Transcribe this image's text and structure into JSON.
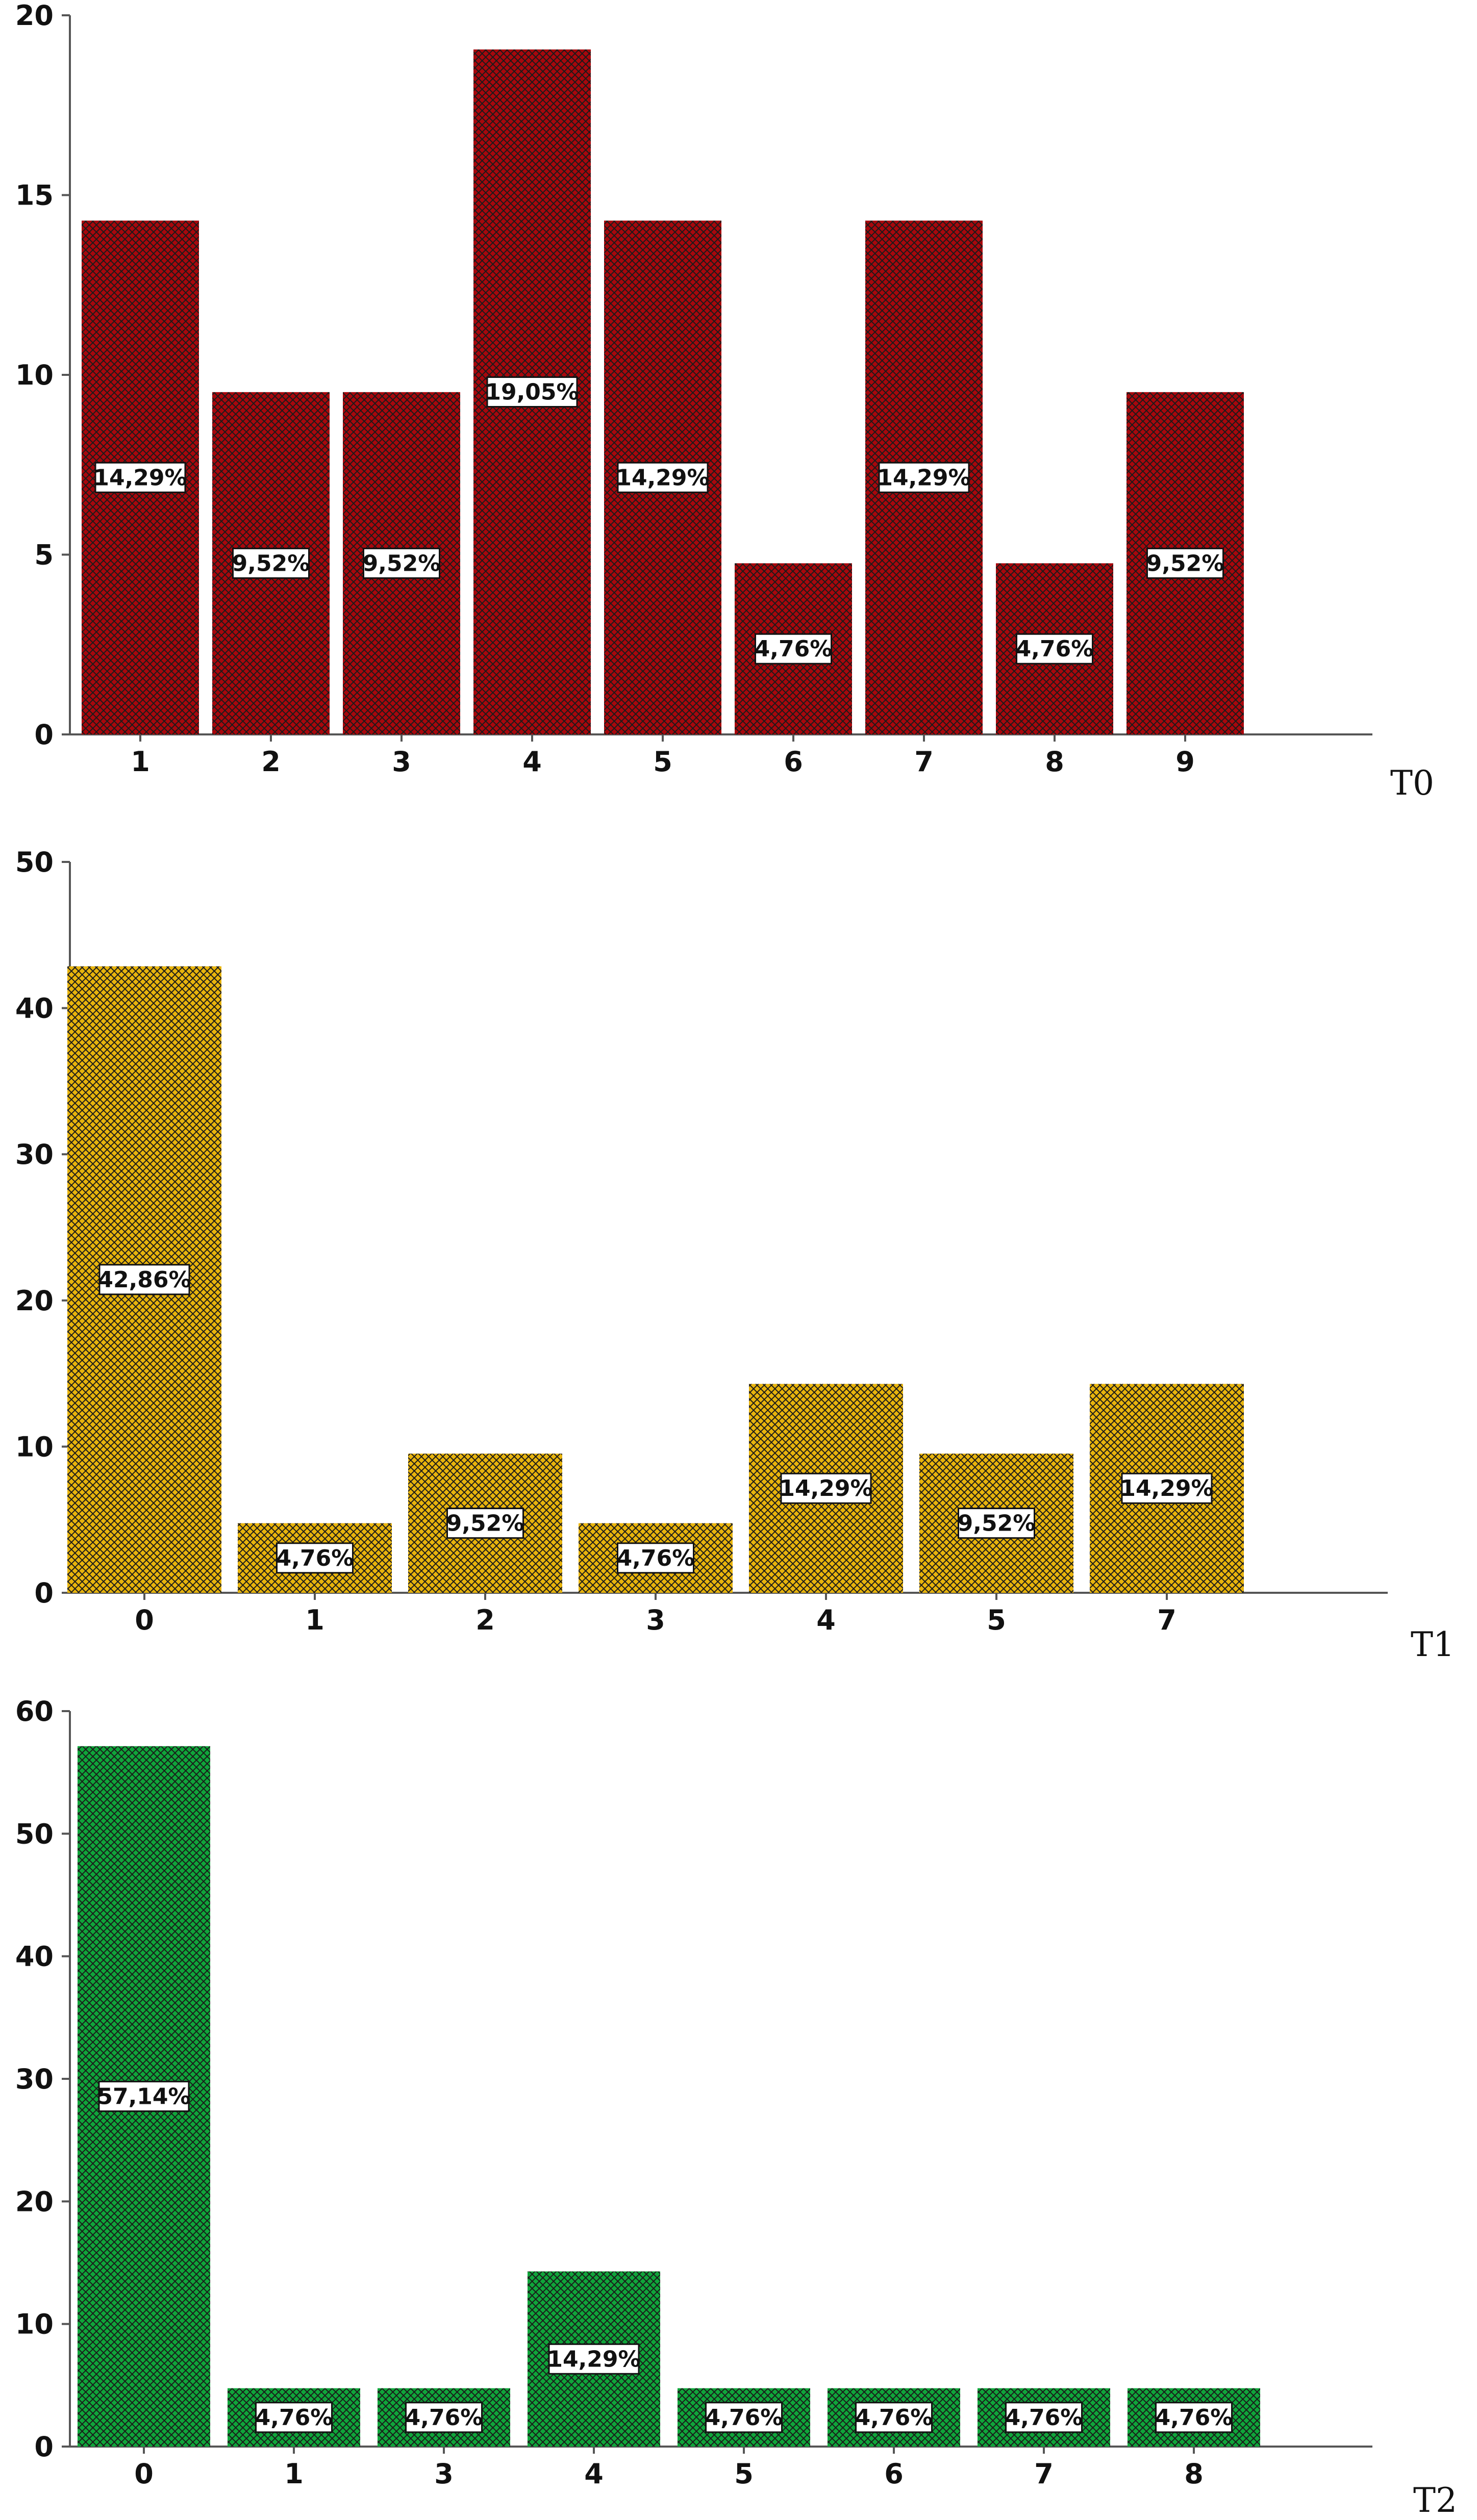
{
  "chart_data": [
    {
      "type": "bar",
      "panel_label": "T0",
      "categories": [
        "1",
        "2",
        "3",
        "4",
        "5",
        "6",
        "7",
        "8",
        "9"
      ],
      "values": [
        14.29,
        9.52,
        9.52,
        19.05,
        14.29,
        4.76,
        14.29,
        4.76,
        9.52
      ],
      "data_labels": [
        "14,29%",
        "9,52%",
        "9,52%",
        "19,05%",
        "14,29%",
        "4,76%",
        "14,29%",
        "4,76%",
        "9,52%"
      ],
      "yticks": [
        "0",
        "5",
        "10",
        "15",
        "20"
      ],
      "ylim": [
        0,
        20
      ],
      "color": "#a8070c",
      "pattern": "crosshatch",
      "grid": false,
      "legend": "none"
    },
    {
      "type": "bar",
      "panel_label": "T1",
      "categories": [
        "0",
        "1",
        "2",
        "3",
        "4",
        "5",
        "7"
      ],
      "values": [
        42.86,
        4.76,
        9.52,
        4.76,
        14.29,
        9.52,
        14.29
      ],
      "data_labels": [
        "42,86%",
        "4,76%",
        "9,52%",
        "4,76%",
        "14,29%",
        "9,52%",
        "14,29%"
      ],
      "yticks": [
        "0",
        "10",
        "20",
        "30",
        "40",
        "50"
      ],
      "ylim": [
        0,
        50
      ],
      "color": "#e8b40c",
      "pattern": "crosshatch",
      "grid": false,
      "legend": "none"
    },
    {
      "type": "bar",
      "panel_label": "T2",
      "categories": [
        "0",
        "1",
        "3",
        "4",
        "5",
        "6",
        "7",
        "8"
      ],
      "values": [
        57.14,
        4.76,
        4.76,
        14.29,
        4.76,
        4.76,
        4.76,
        4.76
      ],
      "data_labels": [
        "57,14%",
        "4,76%",
        "4,76%",
        "14,29%",
        "4,76%",
        "4,76%",
        "4,76%",
        "4,76%"
      ],
      "yticks": [
        "0",
        "10",
        "20",
        "30",
        "40",
        "50",
        "60"
      ],
      "ylim": [
        0,
        60
      ],
      "color": "#0fa53a",
      "pattern": "crosshatch",
      "grid": false,
      "legend": "none"
    }
  ]
}
